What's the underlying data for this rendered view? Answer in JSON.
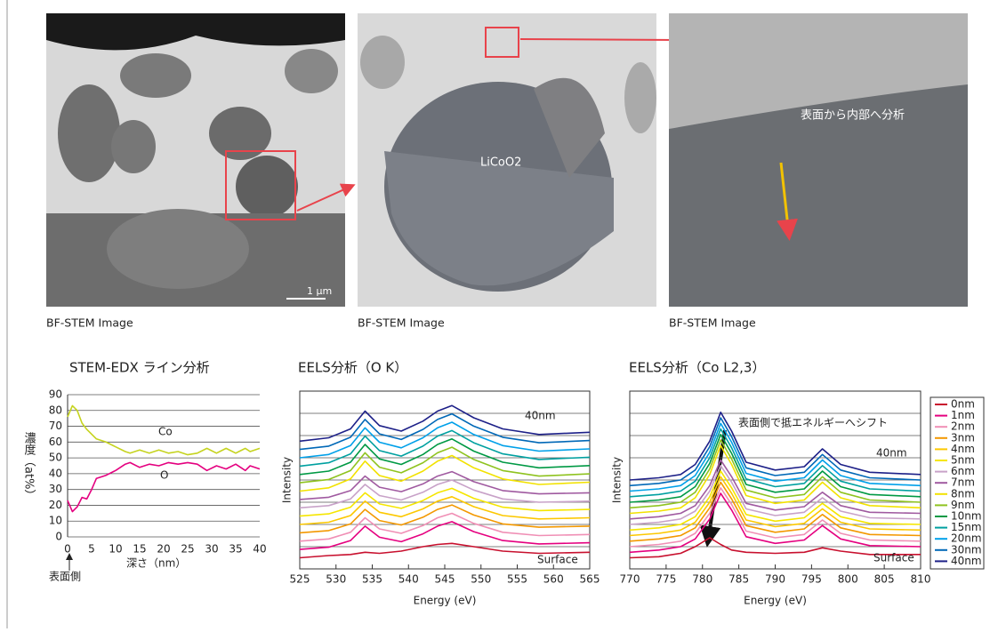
{
  "images": [
    {
      "caption": "BF-STEM Image",
      "scale": "1 μm"
    },
    {
      "caption": "BF-STEM Image",
      "label": "LiCoO2"
    },
    {
      "caption": "BF-STEM Image",
      "annotation": "表面から内部へ分析"
    }
  ],
  "chart_data": [
    {
      "type": "line",
      "title": "STEM-EDX ライン分析",
      "ylabel": "濃度（at%）",
      "xlabel": "深さ（nm）",
      "x_annotation": "表面側",
      "x": [
        0,
        1,
        2,
        3,
        4,
        5,
        6,
        8,
        10,
        12,
        13,
        15,
        17,
        19,
        21,
        23,
        25,
        27,
        29,
        31,
        33,
        35,
        37,
        38,
        40
      ],
      "xlim": [
        0,
        40
      ],
      "xticks": [
        0,
        5,
        10,
        15,
        20,
        25,
        30,
        35,
        40
      ],
      "ylim": [
        0,
        90
      ],
      "yticks": [
        0,
        10,
        20,
        30,
        40,
        50,
        60,
        70,
        80,
        90
      ],
      "grid": true,
      "series": [
        {
          "name": "Co",
          "color": "#c5d31e",
          "values": [
            76,
            83,
            80,
            72,
            68,
            65,
            62,
            60,
            57,
            54,
            53,
            55,
            53,
            55,
            53,
            54,
            52,
            53,
            56,
            53,
            56,
            53,
            56,
            54,
            56
          ]
        },
        {
          "name": "O",
          "color": "#e4007f",
          "values": [
            23,
            16,
            19,
            25,
            24,
            30,
            37,
            39,
            42,
            46,
            47,
            44,
            46,
            45,
            47,
            46,
            47,
            46,
            42,
            45,
            43,
            46,
            42,
            45,
            43
          ]
        }
      ]
    },
    {
      "type": "line",
      "title": "EELS分析（O K）",
      "xlabel": "Energy (eV)",
      "ylabel": "Intensity",
      "annotations": [
        "40nm",
        "Surface"
      ],
      "x": [
        525,
        529,
        532,
        534,
        536,
        539,
        542,
        544,
        546,
        549,
        553,
        558,
        565
      ],
      "xlim": [
        525,
        565
      ],
      "xticks": [
        525,
        530,
        535,
        540,
        545,
        550,
        555,
        560,
        565
      ],
      "ylim": [
        0,
        16
      ],
      "grid": true,
      "series": [
        {
          "color": "#c8102e",
          "values": [
            1,
            1.2,
            1.3,
            1.5,
            1.4,
            1.6,
            2,
            2.2,
            2.3,
            2,
            1.6,
            1.4,
            1.5
          ]
        },
        {
          "color": "#e5007f",
          "values": [
            1.75,
            1.95,
            2.55,
            3.85,
            2.85,
            2.45,
            3.15,
            3.85,
            4.25,
            3.35,
            2.55,
            2.25,
            2.35
          ]
        },
        {
          "color": "#f08fb5",
          "values": [
            2.5,
            2.7,
            3.3,
            4.6,
            3.6,
            3.2,
            3.9,
            4.6,
            5,
            4.1,
            3.3,
            3,
            3.1
          ]
        },
        {
          "color": "#f39800",
          "values": [
            3.25,
            3.45,
            4.05,
            5.35,
            4.35,
            3.95,
            4.65,
            5.35,
            5.75,
            4.85,
            4.05,
            3.75,
            3.85
          ]
        },
        {
          "color": "#fcc800",
          "values": [
            4,
            4.2,
            4.8,
            6.1,
            5.1,
            4.7,
            5.4,
            6.1,
            6.5,
            5.6,
            4.8,
            4.5,
            4.6
          ]
        },
        {
          "color": "#f5e600",
          "values": [
            4.75,
            4.95,
            5.55,
            6.85,
            5.85,
            5.45,
            6.15,
            6.85,
            7.25,
            6.35,
            5.55,
            5.25,
            5.35
          ]
        },
        {
          "color": "#c8a2c8",
          "values": [
            5.5,
            5.7,
            6.3,
            7.6,
            6.6,
            6.2,
            6.9,
            7.6,
            8,
            7.1,
            6.3,
            6,
            6.1
          ]
        },
        {
          "color": "#a05aa0",
          "values": [
            6.25,
            6.45,
            7.05,
            8.35,
            7.35,
            6.95,
            7.65,
            8.35,
            8.75,
            7.85,
            7.05,
            6.75,
            6.85
          ]
        },
        {
          "color": "#f2e200",
          "values": [
            7,
            7.3,
            8.1,
            9.7,
            8.4,
            7.9,
            8.8,
            9.7,
            10.2,
            9.1,
            8.1,
            7.6,
            7.8
          ]
        },
        {
          "color": "#8fc31f",
          "values": [
            7.75,
            8.05,
            8.85,
            10.45,
            9.15,
            8.65,
            9.55,
            10.45,
            10.95,
            9.85,
            8.85,
            8.35,
            8.55
          ]
        },
        {
          "color": "#009944",
          "values": [
            8.5,
            8.8,
            9.6,
            11.2,
            9.9,
            9.4,
            10.3,
            11.2,
            11.7,
            10.6,
            9.6,
            9.1,
            9.3
          ]
        },
        {
          "color": "#00a0a0",
          "values": [
            9.25,
            9.55,
            10.35,
            11.95,
            10.65,
            10.15,
            11.05,
            11.95,
            12.45,
            11.35,
            10.35,
            9.85,
            10.05
          ]
        },
        {
          "color": "#00a0e9",
          "values": [
            10,
            10.3,
            11.1,
            12.7,
            11.4,
            10.9,
            11.8,
            12.7,
            13.2,
            12.1,
            11.1,
            10.6,
            10.8
          ]
        },
        {
          "color": "#0068b7",
          "values": [
            10.75,
            11.05,
            11.85,
            13.45,
            12.15,
            11.65,
            12.55,
            13.45,
            13.95,
            12.85,
            11.85,
            11.35,
            11.55
          ]
        },
        {
          "color": "#1d2088",
          "values": [
            11.5,
            11.8,
            12.6,
            14.2,
            12.9,
            12.4,
            13.3,
            14.2,
            14.7,
            13.6,
            12.6,
            12.1,
            12.3
          ]
        }
      ]
    },
    {
      "type": "line",
      "title": "EELS分析（Co L2,3）",
      "xlabel": "Energy (eV)",
      "ylabel": "Intensity",
      "annotations": [
        "表面側で抵エネルギーへシフト",
        "40nm",
        "Surface"
      ],
      "legend": "right",
      "x": [
        770,
        774,
        777,
        779,
        781,
        782.5,
        784,
        786,
        790,
        794,
        796.5,
        799,
        803,
        810
      ],
      "xlim": [
        770,
        810
      ],
      "xticks": [
        770,
        775,
        780,
        785,
        790,
        795,
        800,
        805,
        810
      ],
      "ylim": [
        0,
        16
      ],
      "grid": true,
      "series": [
        {
          "name": "0nm",
          "color": "#c8102e",
          "values": [
            1,
            1.1,
            1.4,
            2,
            2.8,
            2.2,
            1.7,
            1.5,
            1.4,
            1.5,
            1.9,
            1.6,
            1.3,
            1.3
          ]
        },
        {
          "name": "1nm",
          "color": "#e5007f",
          "values": [
            1.5,
            1.7,
            2,
            2.7,
            4.5,
            6.8,
            5.3,
            2.9,
            2.3,
            2.6,
            3.9,
            2.7,
            2.1,
            2
          ]
        },
        {
          "name": "2nm",
          "color": "#f08fb5",
          "values": [
            2,
            2.2,
            2.5,
            3.2,
            5,
            7.3,
            5.8,
            3.4,
            2.8,
            3.1,
            4.4,
            3.2,
            2.6,
            2.5
          ]
        },
        {
          "name": "3nm",
          "color": "#f39800",
          "values": [
            2.5,
            2.7,
            3,
            3.7,
            5.5,
            7.8,
            6.3,
            3.9,
            3.3,
            3.6,
            4.9,
            3.7,
            3.1,
            3
          ]
        },
        {
          "name": "4nm",
          "color": "#fcc800",
          "values": [
            3,
            3.2,
            3.5,
            4.2,
            6,
            8.3,
            6.8,
            4.4,
            3.8,
            4.1,
            5.4,
            4.2,
            3.6,
            3.5
          ]
        },
        {
          "name": "5nm",
          "color": "#f5e600",
          "values": [
            3.5,
            3.7,
            4,
            4.7,
            6.5,
            8.8,
            7.3,
            4.9,
            4.3,
            4.6,
            5.9,
            4.7,
            4.1,
            4
          ]
        },
        {
          "name": "6nm",
          "color": "#c8a2c8",
          "values": [
            4,
            4.2,
            4.5,
            5.2,
            7,
            9.3,
            7.8,
            5.4,
            4.8,
            5.1,
            6.4,
            5.2,
            4.6,
            4.5
          ]
        },
        {
          "name": "7nm",
          "color": "#a05aa0",
          "values": [
            4.5,
            4.7,
            5,
            5.7,
            7.5,
            9.8,
            8.3,
            5.9,
            5.3,
            5.6,
            6.9,
            5.7,
            5.1,
            5
          ]
        },
        {
          "name": "8nm",
          "color": "#f2e200",
          "values": [
            5,
            5.2,
            5.5,
            6.4,
            8.5,
            11.1,
            9.4,
            6.6,
            5.9,
            6.2,
            7.8,
            6.4,
            5.7,
            5.5
          ]
        },
        {
          "name": "9nm",
          "color": "#8fc31f",
          "values": [
            5.5,
            5.7,
            6,
            6.9,
            9,
            11.6,
            9.9,
            7.1,
            6.4,
            6.7,
            8.3,
            6.9,
            6.2,
            6
          ]
        },
        {
          "name": "10nm",
          "color": "#009944",
          "values": [
            6,
            6.2,
            6.5,
            7.4,
            9.5,
            12.1,
            10.4,
            7.6,
            6.9,
            7.2,
            8.8,
            7.4,
            6.7,
            6.5
          ]
        },
        {
          "name": "15nm",
          "color": "#00a0a0",
          "values": [
            6.5,
            6.7,
            7,
            7.9,
            10,
            12.6,
            10.9,
            8.1,
            7.4,
            7.7,
            9.3,
            7.9,
            7.2,
            7
          ]
        },
        {
          "name": "20nm",
          "color": "#00a0e9",
          "values": [
            7,
            7.2,
            7.5,
            8.4,
            10.5,
            13.1,
            11.4,
            8.6,
            7.9,
            8.2,
            9.8,
            8.4,
            7.7,
            7.5
          ]
        },
        {
          "name": "30nm",
          "color": "#0068b7",
          "values": [
            7.5,
            7.7,
            8,
            8.9,
            11,
            13.6,
            11.9,
            9.1,
            8.4,
            8.7,
            10.3,
            8.9,
            8.2,
            8
          ]
        },
        {
          "name": "40nm",
          "color": "#1d2088",
          "values": [
            8,
            8.2,
            8.5,
            9.4,
            11.5,
            14.1,
            12.4,
            9.6,
            8.9,
            9.2,
            10.8,
            9.4,
            8.7,
            8.5
          ]
        }
      ]
    }
  ]
}
